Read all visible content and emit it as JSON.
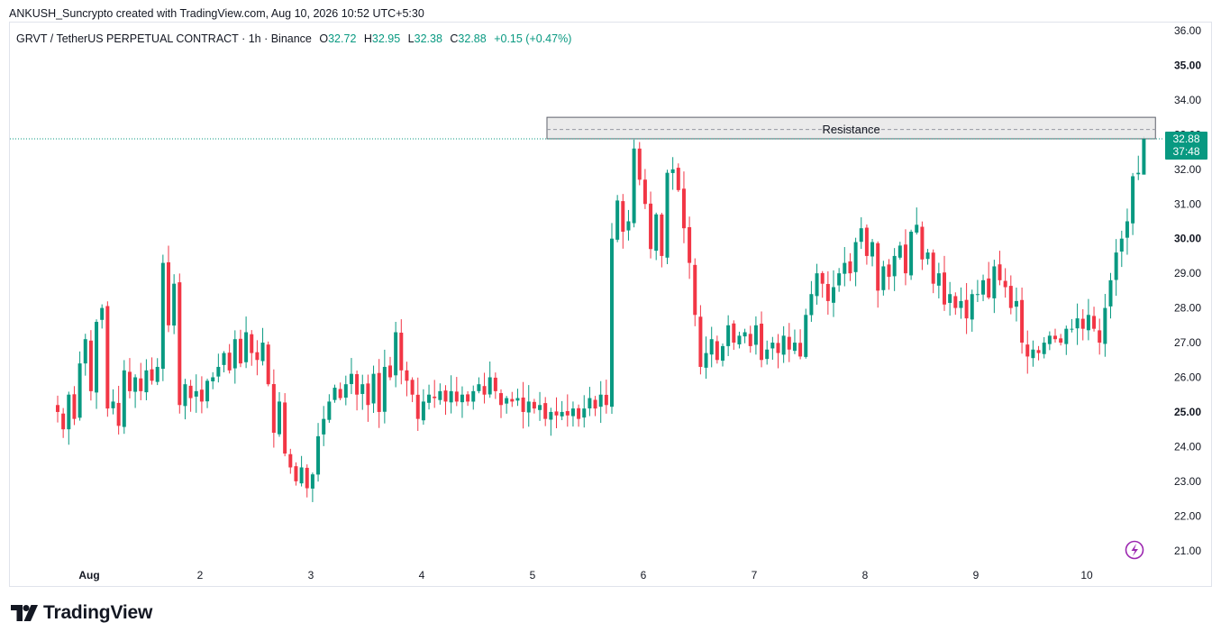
{
  "header": {
    "text": "ANKUSH_Suncrypto created with TradingView.com, Aug 10, 2026 10:52 UTC+5:30"
  },
  "legend": {
    "symbol": "GRVT / TetherUS PERPETUAL CONTRACT · 1h · Binance",
    "open_label": "O",
    "open": "32.72",
    "high_label": "H",
    "high": "32.95",
    "low_label": "L",
    "low": "32.38",
    "close_label": "C",
    "close": "32.88",
    "change": "+0.15 (+0.47%)"
  },
  "brand": {
    "name": "TradingView",
    "logo_icon": "tradingview-logo-icon"
  },
  "colors": {
    "up": "#089981",
    "down": "#f23645",
    "zone_fill": "#e8e8e8",
    "zone_border": "#5d606b",
    "grid": "#f0f3fa",
    "text": "#131722",
    "watermark_icon": "#9c27b0"
  },
  "chart_data": {
    "type": "candlestick",
    "timeframe": "1h",
    "ylim": [
      20.4,
      36.4
    ],
    "y_ticks": [
      "36.00",
      "35.00",
      "34.00",
      "33.00",
      "32.00",
      "31.00",
      "30.00",
      "29.00",
      "28.00",
      "27.00",
      "26.00",
      "25.00",
      "24.00",
      "23.00",
      "22.00",
      "21.00"
    ],
    "y_ticks_bold": [
      "35.00",
      "30.00",
      "25.00"
    ],
    "x_ticks": [
      {
        "label": "Aug",
        "day": 1
      },
      {
        "label": "2",
        "day": 2
      },
      {
        "label": "3",
        "day": 3
      },
      {
        "label": "4",
        "day": 4
      },
      {
        "label": "5",
        "day": 5
      },
      {
        "label": "6",
        "day": 6
      },
      {
        "label": "7",
        "day": 7
      },
      {
        "label": "8",
        "day": 8
      },
      {
        "label": "9",
        "day": 9
      },
      {
        "label": "10",
        "day": 10
      }
    ],
    "last_price": {
      "value": 32.88,
      "label": "32.88",
      "countdown": "37:48"
    },
    "resistance_zone": {
      "label": "Resistance",
      "low": 32.88,
      "high": 33.5,
      "mid": 33.15,
      "from_day": 5.13,
      "to_day": 10.62
    },
    "closes": [
      25.0,
      24.5,
      25.5,
      24.8,
      26.4,
      27.1,
      25.6,
      27.6,
      28.0,
      25.1,
      25.3,
      24.6,
      26.2,
      25.6,
      26.0,
      25.6,
      26.2,
      25.9,
      26.3,
      29.3,
      27.5,
      28.7,
      25.2,
      25.8,
      25.4,
      25.6,
      25.3,
      25.9,
      26.0,
      26.3,
      26.7,
      26.2,
      27.1,
      26.4,
      27.3,
      26.7,
      26.5,
      27.0,
      25.8,
      24.4,
      25.3,
      23.8,
      23.4,
      23.0,
      23.4,
      22.8,
      23.2,
      24.3,
      24.8,
      25.3,
      25.7,
      25.4,
      25.8,
      26.1,
      25.5,
      25.8,
      25.2,
      26.1,
      25.0,
      26.3,
      26.0,
      27.3,
      26.2,
      25.9,
      25.5,
      24.8,
      25.3,
      25.5,
      25.4,
      25.6,
      25.3,
      25.6,
      25.3,
      25.5,
      25.3,
      25.6,
      25.8,
      25.5,
      26.0,
      25.6,
      25.2,
      25.4,
      25.3,
      25.4,
      25.0,
      25.3,
      25.1,
      25.2,
      24.8,
      25.0,
      24.9,
      25.0,
      24.9,
      25.1,
      24.8,
      25.1,
      25.4,
      25.1,
      25.5,
      25.2,
      30.0,
      31.1,
      30.2,
      30.5,
      32.6,
      31.7,
      31.0,
      29.7,
      30.7,
      29.5,
      31.9,
      32.0,
      31.4,
      30.3,
      29.3,
      27.8,
      26.3,
      26.7,
      27.1,
      26.5,
      26.9,
      27.5,
      27.0,
      27.2,
      27.3,
      26.9,
      27.5,
      26.5,
      26.8,
      27.0,
      26.7,
      27.2,
      26.8,
      27.0,
      26.6,
      27.8,
      28.4,
      29.0,
      28.7,
      28.2,
      28.6,
      29.0,
      29.3,
      29.0,
      29.9,
      30.3,
      29.5,
      29.9,
      28.5,
      29.2,
      28.9,
      29.5,
      29.8,
      29.0,
      30.2,
      30.4,
      29.4,
      29.6,
      28.7,
      29.0,
      28.1,
      28.4,
      28.0,
      28.2,
      27.7,
      28.4,
      28.4,
      28.8,
      28.3,
      29.2,
      28.8,
      28.6,
      28.0,
      28.2,
      27.0,
      26.6,
      26.8,
      26.7,
      27.0,
      27.2,
      27.1,
      27.0,
      27.4,
      27.4,
      27.7,
      27.4,
      27.8,
      27.4,
      27.0,
      28.0,
      28.8,
      29.6,
      30.0,
      30.5,
      31.8,
      31.9,
      32.88
    ]
  }
}
